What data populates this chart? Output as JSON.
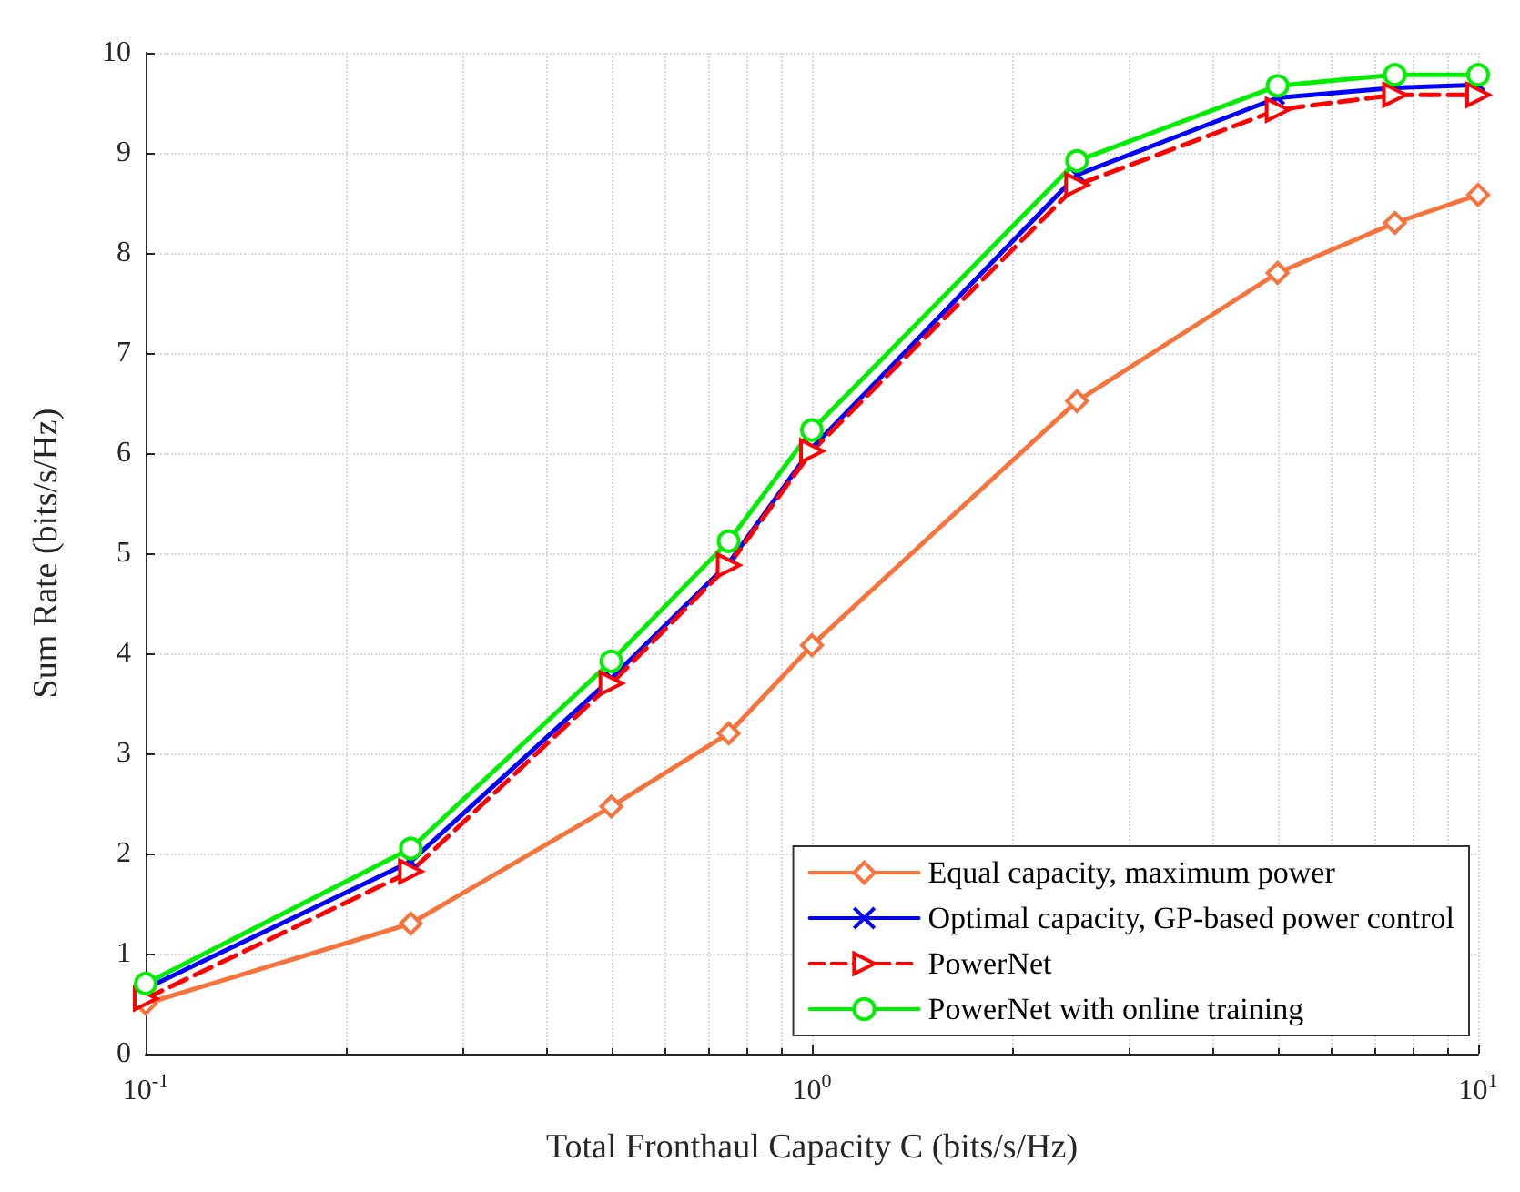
{
  "chart_data": {
    "type": "line",
    "xlabel": "Total Fronthaul Capacity C (bits/s/Hz)",
    "ylabel": "Sum Rate (bits/s/Hz)",
    "x": [
      0.1,
      0.25,
      0.5,
      0.75,
      1,
      2.5,
      5,
      7.5,
      10
    ],
    "series": [
      {
        "name": "Equal capacity, maximum power",
        "color": "#f8723c",
        "marker": "diamond",
        "line_style": "solid",
        "values": [
          0.5,
          1.3,
          2.47,
          3.2,
          4.08,
          6.52,
          7.8,
          8.3,
          8.58
        ]
      },
      {
        "name": "Optimal capacity, GP-based power control",
        "color": "#0000ff",
        "marker": "cross",
        "line_style": "solid",
        "values": [
          0.65,
          1.92,
          3.75,
          4.9,
          6.05,
          8.78,
          9.55,
          9.65,
          9.68
        ]
      },
      {
        "name": "PowerNet",
        "color": "#ff0000",
        "marker": "triangle",
        "line_style": "dashed",
        "values": [
          0.55,
          1.82,
          3.7,
          4.88,
          6.02,
          8.68,
          9.43,
          9.58,
          9.58
        ]
      },
      {
        "name": "PowerNet with online training",
        "color": "#00ee00",
        "marker": "circle",
        "line_style": "solid",
        "values": [
          0.7,
          2.05,
          3.92,
          5.12,
          6.23,
          8.92,
          9.67,
          9.78,
          9.78
        ]
      }
    ],
    "log": "x",
    "xlim": [
      0.1,
      10
    ],
    "xticks": [
      {
        "value": 0.1,
        "label": "10$^{-1}$"
      },
      {
        "value": 1,
        "label": "10$^{0}$"
      },
      {
        "value": 10,
        "label": "10$^{1}$"
      }
    ],
    "ylim": [
      0,
      10
    ],
    "yticks": [
      0,
      1,
      2,
      3,
      4,
      5,
      6,
      7,
      8,
      9,
      10
    ],
    "grid": true,
    "legend": "bottom right"
  }
}
